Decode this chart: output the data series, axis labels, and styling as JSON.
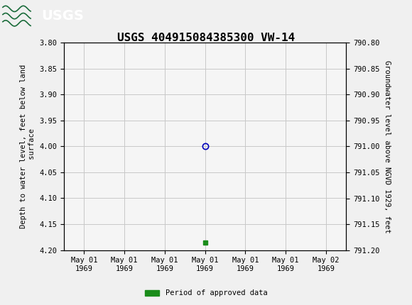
{
  "title": "USGS 404915084385300 VW-14",
  "left_ylabel_lines": [
    "Depth to water level, feet below land",
    " surface"
  ],
  "right_ylabel": "Groundwater level above NGVD 1929, feet",
  "ylim_left": [
    3.8,
    4.2
  ],
  "ylim_right": [
    791.2,
    790.8
  ],
  "left_yticks": [
    3.8,
    3.85,
    3.9,
    3.95,
    4.0,
    4.05,
    4.1,
    4.15,
    4.2
  ],
  "right_yticks": [
    791.2,
    791.15,
    791.1,
    791.05,
    791.0,
    790.95,
    790.9,
    790.85,
    790.8
  ],
  "left_ytick_labels": [
    "3.80",
    "3.85",
    "3.90",
    "3.95",
    "4.00",
    "4.05",
    "4.10",
    "4.15",
    "4.20"
  ],
  "right_ytick_labels": [
    "791.20",
    "791.15",
    "791.10",
    "791.05",
    "791.00",
    "790.95",
    "790.90",
    "790.85",
    "790.80"
  ],
  "data_point_x": 3.0,
  "data_point_y": 4.0,
  "green_square_x": 3.0,
  "green_square_y": 4.185,
  "header_color": "#1a6b3a",
  "circle_color": "#0000bb",
  "green_color": "#1a8c1a",
  "bg_color": "#f0f0f0",
  "plot_bg_color": "#f5f5f5",
  "grid_color": "#c8c8c8",
  "font_family": "monospace",
  "title_fontsize": 11.5,
  "tick_fontsize": 7.5,
  "label_fontsize": 7.5,
  "legend_label": "Period of approved data",
  "xtick_positions": [
    0,
    1,
    2,
    3,
    4,
    5,
    6
  ],
  "xtick_labels": [
    "May 01\n1969",
    "May 01\n1969",
    "May 01\n1969",
    "May 01\n1969",
    "May 01\n1969",
    "May 01\n1969",
    "May 02\n1969"
  ]
}
